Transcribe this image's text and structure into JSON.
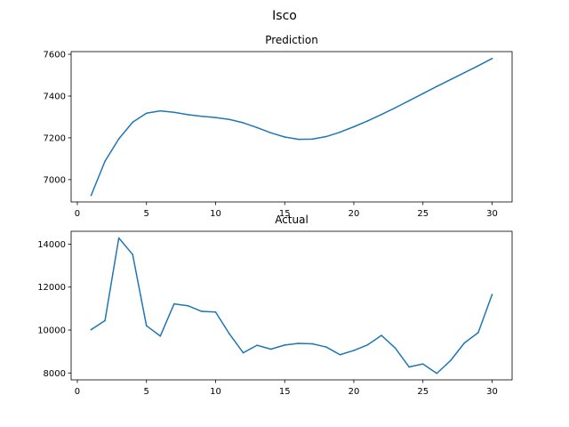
{
  "figure_title": "Isco",
  "colors": {
    "series": "#1f77b4",
    "axes": "#000000",
    "background": "#ffffff"
  },
  "chart_data": [
    {
      "type": "line",
      "title": "Prediction",
      "xlabel": "",
      "ylabel": "",
      "grid": false,
      "xlim": [
        -0.45,
        31.45
      ],
      "ylim": [
        6893,
        7613
      ],
      "x_ticks": [
        0,
        5,
        10,
        15,
        20,
        25,
        30
      ],
      "y_ticks": [
        7000,
        7200,
        7400,
        7600
      ],
      "x": [
        1,
        2,
        3,
        4,
        5,
        6,
        7,
        8,
        9,
        10,
        11,
        12,
        13,
        14,
        15,
        16,
        17,
        18,
        19,
        20,
        21,
        22,
        23,
        24,
        25,
        26,
        27,
        28,
        29,
        30
      ],
      "series": [
        {
          "values": [
            6925,
            7088,
            7195,
            7275,
            7318,
            7329,
            7322,
            7311,
            7303,
            7297,
            7288,
            7272,
            7249,
            7224,
            7204,
            7193,
            7194,
            7206,
            7227,
            7253,
            7281,
            7312,
            7344,
            7378,
            7412,
            7446,
            7479,
            7512,
            7545,
            7580
          ]
        }
      ]
    },
    {
      "type": "line",
      "title": "Actual",
      "xlabel": "",
      "ylabel": "",
      "grid": false,
      "xlim": [
        -0.45,
        31.45
      ],
      "ylim": [
        7680,
        14600
      ],
      "x_ticks": [
        0,
        5,
        10,
        15,
        20,
        25,
        30
      ],
      "y_ticks": [
        8000,
        10000,
        12000,
        14000
      ],
      "x": [
        1,
        2,
        3,
        4,
        5,
        6,
        7,
        8,
        9,
        10,
        11,
        12,
        13,
        14,
        15,
        16,
        17,
        18,
        19,
        20,
        21,
        22,
        23,
        24,
        25,
        26,
        27,
        28,
        29,
        30
      ],
      "series": [
        {
          "values": [
            10020,
            10440,
            14290,
            13520,
            10200,
            9720,
            11220,
            11130,
            10870,
            10840,
            9820,
            8940,
            9290,
            9110,
            9300,
            9380,
            9360,
            9210,
            8850,
            9050,
            9310,
            9750,
            9160,
            8280,
            8420,
            7980,
            8580,
            9400,
            9880,
            11650
          ]
        }
      ]
    }
  ]
}
